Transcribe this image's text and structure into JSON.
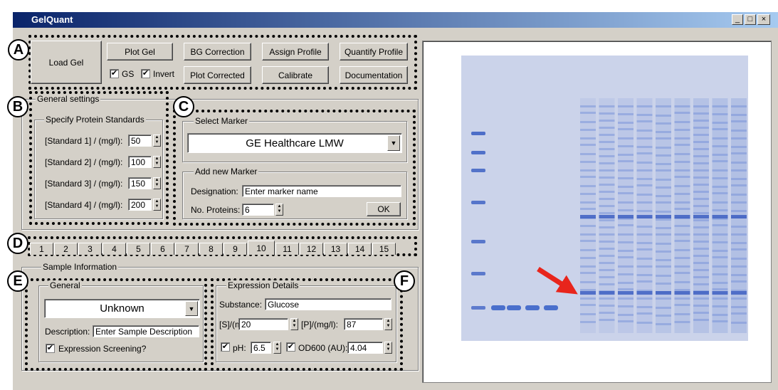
{
  "window": {
    "title": "GelQuant"
  },
  "markers": [
    "A",
    "B",
    "C",
    "D",
    "E",
    "F"
  ],
  "toolbar": {
    "buttons": [
      "Load Gel",
      "Plot Gel",
      "BG Correction",
      "Assign Profile",
      "Quantify Profile",
      "Plot Corrected",
      "Calibrate",
      "Documentation"
    ],
    "checkboxes": [
      "GS",
      "Invert"
    ]
  },
  "general_settings": {
    "title": "General settings",
    "standards_group": "Specify Protein Standards",
    "standards": [
      {
        "label": "[Standard 1] / (mg/l):",
        "value": "50"
      },
      {
        "label": "[Standard 2] / (mg/l):",
        "value": "100"
      },
      {
        "label": "[Standard 3] / (mg/l):",
        "value": "150"
      },
      {
        "label": "[Standard 4] / (mg/l):",
        "value": "200"
      }
    ]
  },
  "marker": {
    "select_title": "Select Marker",
    "selected": "GE Healthcare LMW",
    "add_title": "Add new Marker",
    "designation_label": "Designation:",
    "designation_value": "Enter marker name",
    "proteins_label": "No. Proteins:",
    "proteins_value": "6",
    "ok": "OK"
  },
  "tabs": [
    "1",
    "2",
    "3",
    "4",
    "5",
    "6",
    "7",
    "8",
    "9",
    "10",
    "11",
    "12",
    "13",
    "14",
    "15"
  ],
  "sample": {
    "title": "Sample Information",
    "general_title": "General",
    "selected": "Unknown",
    "description_label": "Description:",
    "description_value": "Enter Sample Description",
    "screening": "Expression Screening?",
    "expression_title": "Expression Details",
    "substance_label": "Substance:",
    "substance_value": "Glucose",
    "s_label": "[S]/(mM):",
    "s_value": "20",
    "p_label": "[P]/(mg/l):",
    "p_value": "87",
    "ph_label": "pH:",
    "ph_value": "6.5",
    "od_label": "OD600 (AU):",
    "od_value": "4.04"
  }
}
